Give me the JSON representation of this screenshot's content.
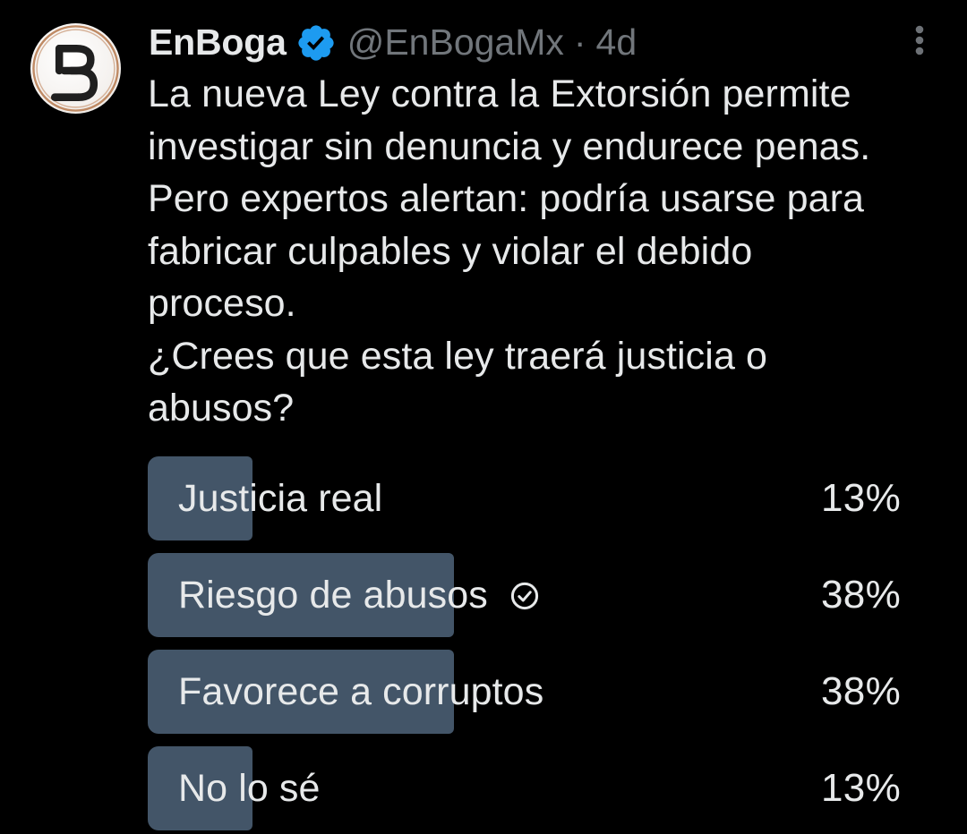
{
  "post": {
    "author": {
      "display_name": "EnBoga",
      "handle": "@EnBogaMx",
      "separator": "·",
      "timestamp": "4d",
      "verified": true,
      "avatar_letter": "B"
    },
    "text": "La nueva Ley contra la Extorsión permite\ninvestigar sin denuncia y endurece penas.\nPero expertos alertan: podría usarse para\nfabricar culpables y violar el debido\nproceso.\n¿Crees que esta ley traerá justicia o\nabusos?",
    "poll": {
      "options": [
        {
          "label": "Justicia real",
          "percent_label": "13%",
          "value": 13,
          "voted": false
        },
        {
          "label": "Riesgo de abusos",
          "percent_label": "38%",
          "value": 38,
          "voted": true
        },
        {
          "label": "Favorece a corruptos",
          "percent_label": "38%",
          "value": 38,
          "voted": false
        },
        {
          "label": "No lo sé",
          "percent_label": "13%",
          "value": 13,
          "voted": false
        }
      ]
    },
    "icons": {
      "menu": "kebab-menu-icon",
      "verified": "verified-badge-icon",
      "vote": "circle-check-icon"
    }
  },
  "colors": {
    "background": "#000000",
    "text_primary": "#e7e9ea",
    "text_secondary": "#71767b",
    "poll_bar": "#435568",
    "verified_blue": "#1d9bf0",
    "avatar_ring": "#bf8a64",
    "avatar_background": "#f6f3f0",
    "avatar_letter_color": "#1f1f1f",
    "menu_dots": "#6d7176"
  }
}
